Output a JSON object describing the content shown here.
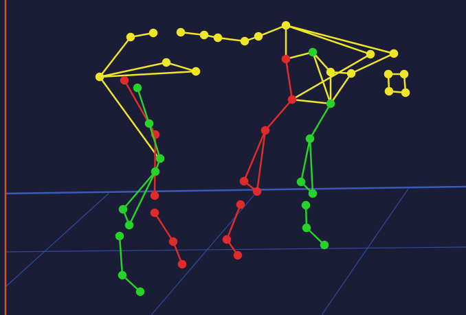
{
  "scene": {
    "type": "3d-skeleton-viewer",
    "colors": {
      "background": "#1a1d35",
      "grid_line": "#2f4a9a",
      "horizon_line": "#3a5bb5",
      "axis_line": "#d4502d",
      "yellow": "#f0e629",
      "red": "#e02b2b",
      "green": "#27d22b"
    }
  },
  "skeletons": [
    {
      "name": "yellow-skeleton",
      "color_key": "yellow"
    },
    {
      "name": "red-skeleton",
      "color_key": "red"
    },
    {
      "name": "green-skeleton",
      "color_key": "green"
    }
  ]
}
